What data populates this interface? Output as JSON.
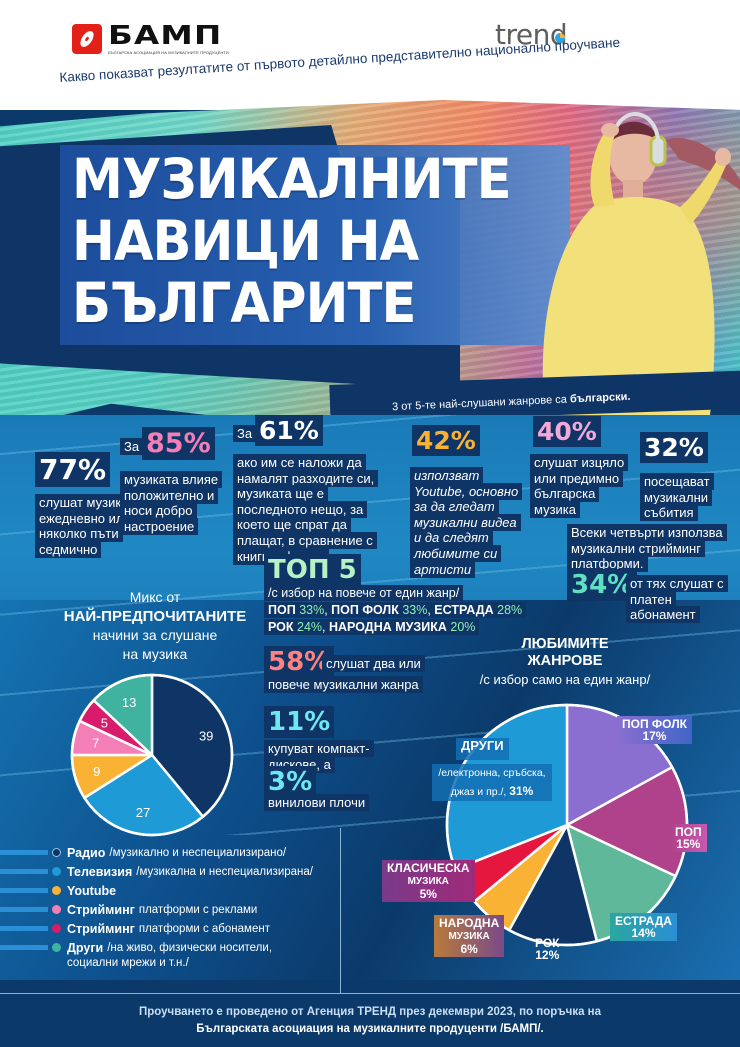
{
  "header": {
    "bamp_logo": {
      "name": "БАМП",
      "tagline": "БЪЛГАРСКА АСОЦИАЦИЯ НА МУЗИКАЛНИТЕ ПРОДУЦЕНТИ",
      "icon": "disc-icon",
      "color": "#e32119"
    },
    "trend_logo": {
      "name": "trend",
      "icon": "pie-dot-icon",
      "accent": "#f9b233",
      "accent2": "#2aa7e0"
    },
    "subtitle": "Какво показват резултатите от първото детайлно представително национално проучване"
  },
  "hero": {
    "title_lines": [
      "МУЗИКАЛНИТЕ",
      "НАВИЦИ НА",
      "БЪЛГАРИТЕ"
    ],
    "genre_note_prefix": "3 от 5-те най-слушани жанрове са ",
    "genre_note_bold": "български."
  },
  "stats": {
    "s77": {
      "value": "77%",
      "text": "слушат музика ежедневно или няколко пъти седмично"
    },
    "s85": {
      "prefix": "За",
      "value": "85%",
      "text": "музиката влияе положително и носи добро настроение",
      "color": "#f47fb6"
    },
    "s61": {
      "prefix": "За",
      "value": "61%",
      "text": "ако им се наложи да намалят разходите си, музиката ще е последното нещо, за което ще спрат да плащат, в сравнение с книги и филми"
    },
    "s42": {
      "value": "42%",
      "text": "използват Youtube, основно за да гледат музикални видеа и да следят любимите си артисти",
      "color": "#f9b233"
    },
    "s40": {
      "value": "40%",
      "text": "слушат изцяло или предимно българска музика",
      "color": "#f5a7d8"
    },
    "s32": {
      "value": "32%",
      "text": "посещават музикални събития"
    },
    "streaming": {
      "text": "Всеки четвърти използва музикални стрийминг платформи.",
      "value": "34%",
      "rest": "от тях слушат с платен абонамент",
      "color": "#5fe0c3"
    },
    "top5": {
      "title": "ТОП 5",
      "subtitle": "/с избор на повече от един жанр/",
      "items": [
        {
          "genre": "ПОП",
          "pct": "33%"
        },
        {
          "genre": "ПОП ФОЛК",
          "pct": "33%"
        },
        {
          "genre": "ЕСТРАДА",
          "pct": "28%"
        },
        {
          "genre": "РОК",
          "pct": "24%"
        },
        {
          "genre": "НАРОДНА МУЗИКА",
          "pct": "20%"
        }
      ]
    },
    "s58": {
      "value": "58%",
      "text1": "слушат два или",
      "text2": "повече музикални жанра",
      "color": "#ff8280"
    },
    "s11": {
      "value": "11%",
      "text": "купуват компакт-дискове, а"
    },
    "s3": {
      "value": "3%",
      "text": "винилови плочи"
    }
  },
  "mix_chart": {
    "title_l1": "Микс от",
    "title_l2": "НАЙ-ПРЕДПОЧИТАНИТЕ",
    "title_l3": "начини за слушане",
    "title_l4": "на музика"
  },
  "legend": [
    {
      "bold": "Радио",
      "rest": "/музикално и неспециализирано/",
      "color": "#0e3566"
    },
    {
      "bold": "Телевизия",
      "rest": "/музикална и неспециализирана/",
      "color": "#1e9ad6"
    },
    {
      "bold": "Youtube",
      "rest": "",
      "color": "#f9b233"
    },
    {
      "bold": "Стрийминг",
      "rest": "платформи с реклами",
      "color": "#f47fb6"
    },
    {
      "bold": "Стрийминг",
      "rest": "платформи с абонамент",
      "color": "#d81b6a"
    },
    {
      "bold": "Други",
      "rest": "/на живо, физически носители,",
      "rest2": "социални мрежи и т.н./",
      "color": "#3fb3a0"
    }
  ],
  "genre_chart": {
    "title_l1": "ЛЮБИМИТЕ",
    "title_l2": "ЖАНРОВЕ",
    "subtitle": "/с избор само на един жанр/",
    "labels": {
      "drugi_title": "ДРУГИ",
      "drugi_sub": "/електронна, сръбска,",
      "drugi_sub2": "джаз и пр./,",
      "drugi_pct": "31%",
      "popfolk": "ПОП ФОЛК",
      "popfolk_pct": "17%",
      "pop": "ПОП",
      "pop_pct": "15%",
      "estrada": "ЕСТРАДА",
      "estrada_pct": "14%",
      "rok": "РОК",
      "rok_pct": "12%",
      "narodna": "НАРОДНА",
      "narodna_sub": "МУЗИКА",
      "narodna_pct": "6%",
      "klasicheska": "КЛАСИЧЕСКА",
      "klasicheska_sub": "МУЗИКА",
      "klasicheska_pct": "5%"
    }
  },
  "footer": {
    "line1": "Проучването е проведено от Агенция ТРЕНД през декември 2023, по поръчка на",
    "line2": "Българската асоциация на музикалните продуценти /БАМП/."
  },
  "chart_data": [
    {
      "type": "pie",
      "title": "Микс от НАЙ-ПРЕДПОЧИТАНИТЕ начини за слушане на музика",
      "categories": [
        "Радио",
        "Телевизия",
        "Youtube",
        "Стрийминг платформи с реклами",
        "Стрийминг платформи с абонамент",
        "Други"
      ],
      "values": [
        39,
        27,
        9,
        7,
        5,
        13
      ],
      "colors": [
        "#0e3566",
        "#1e9ad6",
        "#f9b233",
        "#f47fb6",
        "#d81b6a",
        "#3fb3a0"
      ],
      "start": "12 o'clock, clockwise",
      "legend_position": "bottom-left"
    },
    {
      "type": "pie",
      "title": "ЛЮБИМИТЕ ЖАНРОВЕ /с избор само на един жанр/",
      "categories": [
        "ПОП ФОЛК",
        "ПОП",
        "ЕСТРАДА",
        "РОК",
        "НАРОДНА МУЗИКА",
        "КЛАСИЧЕСКА МУЗИКА",
        "ДРУГИ"
      ],
      "values": [
        17,
        15,
        14,
        12,
        6,
        5,
        31
      ],
      "unit": "%",
      "colors": [
        "#8a6fd0",
        "#b0428c",
        "#5fb89a",
        "#0e3566",
        "#f9b233",
        "#e5173f",
        "#1e9ad6"
      ],
      "start": "12 o'clock, clockwise"
    },
    {
      "type": "bar",
      "title": "ТОП 5 /с избор на повече от един жанр/",
      "categories": [
        "ПОП",
        "ПОП ФОЛК",
        "ЕСТРАДА",
        "РОК",
        "НАРОДНА МУЗИКА"
      ],
      "values": [
        33,
        33,
        28,
        24,
        20
      ],
      "unit": "%"
    }
  ]
}
